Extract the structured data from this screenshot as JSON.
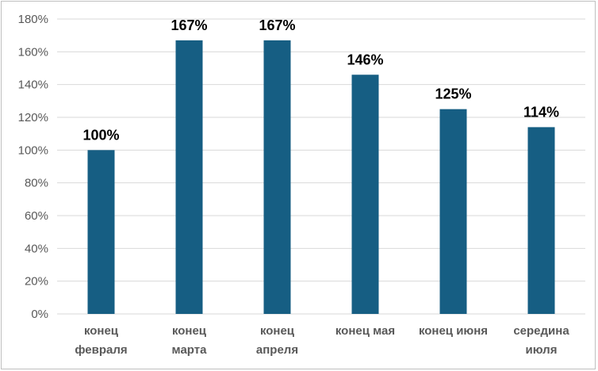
{
  "chart_data": {
    "type": "bar",
    "categories": [
      [
        "конец",
        "февраля"
      ],
      [
        "конец",
        "марта"
      ],
      [
        "конец",
        "апреля"
      ],
      [
        "конец мая"
      ],
      [
        "конец июня"
      ],
      [
        "середина",
        "июля"
      ]
    ],
    "values": [
      100,
      167,
      167,
      146,
      125,
      114
    ],
    "data_labels": [
      "100%",
      "167%",
      "167%",
      "146%",
      "125%",
      "114%"
    ],
    "ylim": [
      0,
      180
    ],
    "y_ticks": [
      "0%",
      "20%",
      "40%",
      "60%",
      "80%",
      "100%",
      "120%",
      "140%",
      "160%",
      "180%"
    ],
    "y_tick_values": [
      0,
      20,
      40,
      60,
      80,
      100,
      120,
      140,
      160,
      180
    ],
    "title": "",
    "xlabel": "",
    "ylabel": "",
    "grid": true,
    "legend": "none",
    "colors": {
      "bar": "#165e83",
      "grid": "#d9d9d9",
      "axis": "#d9d9d9"
    }
  }
}
